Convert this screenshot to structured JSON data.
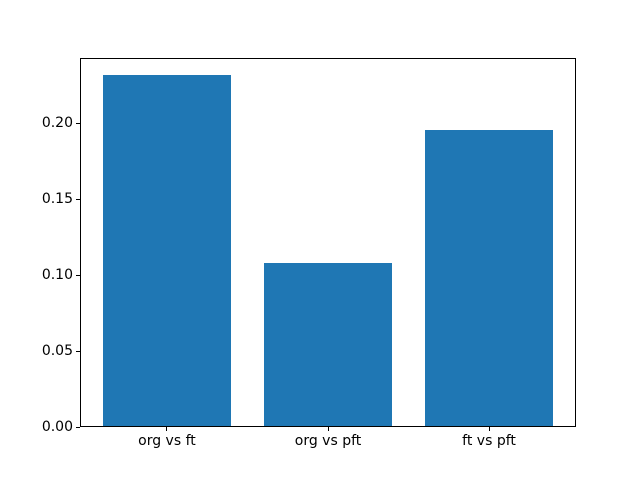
{
  "chart_data": {
    "type": "bar",
    "title": "",
    "xlabel": "",
    "ylabel": "",
    "categories": [
      "org vs ft",
      "org vs pft",
      "ft vs pft"
    ],
    "values": [
      0.232,
      0.108,
      0.196
    ],
    "ylim": [
      0,
      0.2436
    ],
    "ytick_values": [
      0.0,
      0.05,
      0.1,
      0.15,
      0.2
    ],
    "ytick_labels": [
      "0.00",
      "0.05",
      "0.10",
      "0.15",
      "0.20"
    ],
    "bar_width_fraction": 0.8,
    "bar_color": "#1f77b4",
    "spine_color": "#000000",
    "text_color": "#000000",
    "background_color": "#ffffff",
    "grid": false,
    "legend": "none"
  }
}
